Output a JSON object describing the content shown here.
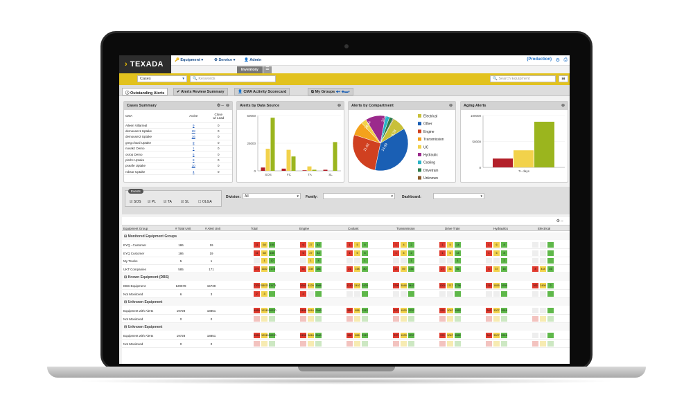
{
  "app": {
    "logo": "TEXADA",
    "production": "(Production)"
  },
  "nav": {
    "equipment": "Equipment",
    "service": "Service",
    "admin": "Admin",
    "inventory": "Inventory"
  },
  "toolbar": {
    "cases": "Cases",
    "keywords": "Keywords",
    "search_equipment": "Search Equipment"
  },
  "tabs": {
    "outstanding": "Outstanding Alerts",
    "review": "Alerts Review Summary",
    "cma": "CMA Activity Scorecard",
    "groups": "My Groups"
  },
  "cases_summary": {
    "title": "Cases Summary",
    "col_cma": "CMA",
    "col_active": "Active",
    "col_close": "Close",
    "col_lead": "w/ Lead",
    "rows": [
      {
        "name": "Aileen Villarreal",
        "active": "9",
        "close": "0"
      },
      {
        "name": "demouser1 Uptake",
        "active": "28",
        "close": "0"
      },
      {
        "name": "demouser2 Uptake",
        "active": "16",
        "close": "0"
      },
      {
        "name": "greg.chard Uptake",
        "active": "9",
        "close": "0"
      },
      {
        "name": "novakz Demo",
        "active": "1",
        "close": "0"
      },
      {
        "name": "osrop Demo",
        "active": "5",
        "close": "0"
      },
      {
        "name": "pitchc Uptake",
        "active": "8",
        "close": "0"
      },
      {
        "name": "pseafe Uptake",
        "active": "10",
        "close": "0"
      },
      {
        "name": "robsor Uptake",
        "active": "4",
        "close": "0"
      }
    ]
  },
  "chart_data": [
    {
      "type": "bar",
      "title": "Alerts by Data Source",
      "categories": [
        "SOS",
        "FC",
        "TA",
        "SL"
      ],
      "ylim": [
        0,
        50000
      ],
      "yticks": [
        "50000",
        "25000",
        "0"
      ],
      "series": [
        {
          "color": "#b3202a",
          "values": [
            3000,
            2000,
            500,
            1000
          ]
        },
        {
          "color": "#f2d24b",
          "values": [
            20000,
            19000,
            4000,
            0
          ]
        },
        {
          "color": "#9bb51e",
          "values": [
            48000,
            13000,
            1000,
            26000
          ]
        }
      ]
    },
    {
      "type": "pie",
      "title": "Alerts by Compartment",
      "slices": [
        {
          "label": "Electrical",
          "color": "#c8c03a",
          "value": 8.28
        },
        {
          "label": "Other",
          "color": "#1a5fb4",
          "value": 37.01
        },
        {
          "label": "Engine",
          "color": "#d04020",
          "value": 26.64
        },
        {
          "label": "Transmission",
          "color": "#f4a21c",
          "value": 8.1
        },
        {
          "label": "UC",
          "color": "#f2d24b",
          "value": 3.2
        },
        {
          "label": "Hydraulic",
          "color": "#9b2a8c",
          "value": 11.63
        },
        {
          "label": "Cooling",
          "color": "#2bb3c6",
          "value": 2.5
        },
        {
          "label": "Drivetrain",
          "color": "#2e7d4a",
          "value": 2.2
        },
        {
          "label": "Unknown",
          "color": "#8a5a2a",
          "value": 0.4
        }
      ],
      "visible_labels": [
        "37.01",
        "26.64",
        "11.63",
        "8.28",
        "14.89"
      ]
    },
    {
      "type": "bar",
      "title": "Aging Alerts",
      "categories": [
        "7+ days"
      ],
      "ylim": [
        0,
        100000
      ],
      "yticks": [
        "100000",
        "50000",
        "0"
      ],
      "series": [
        {
          "color": "#b3202a",
          "values": [
            17000
          ]
        },
        {
          "color": "#f2d24b",
          "values": [
            33000
          ]
        },
        {
          "color": "#9bb51e",
          "values": [
            88000
          ]
        }
      ]
    }
  ],
  "filters": {
    "events": "Events",
    "sos": "SOS",
    "pl": "PL",
    "ta": "TA",
    "sl": "SL",
    "olga": "OLGA",
    "division": "Division:",
    "division_val": "All",
    "family": "Family:",
    "dashboard": "Dashboard:"
  },
  "grid": {
    "headers": [
      "Equipment Group",
      "# Total Unit",
      "# Alert Unit",
      "Total",
      "Engine",
      "Coolant",
      "Transmission",
      "Drive Train",
      "Hydraulics",
      "Electrical"
    ],
    "groups": [
      "Monitored Equipment Groups",
      "Known Equipment (DBS)",
      "Unknown Equipment",
      "Unknown Equipment"
    ],
    "rows": [
      {
        "name": "EYQ - Customer",
        "total": "186",
        "alert": "19",
        "cells": [
          [
            "r",
            "11"
          ],
          [
            "y",
            "68"
          ],
          [
            "g",
            "155"
          ],
          [
            "r",
            "6"
          ],
          [
            "y",
            "27"
          ],
          [
            "g",
            "42"
          ],
          [
            "r",
            "1"
          ],
          [
            "y",
            "5"
          ],
          [
            "g",
            "6"
          ],
          [
            "r",
            "1"
          ],
          [
            "y",
            "4"
          ],
          [
            "g",
            "2"
          ],
          [
            "r",
            "1"
          ],
          [
            "y",
            "5"
          ],
          [
            "g",
            "14"
          ],
          [
            "r",
            "1"
          ],
          [
            "y",
            "6"
          ],
          [
            "g",
            "8"
          ],
          [
            "e",
            ""
          ],
          [
            "e",
            ""
          ],
          [
            "g",
            ""
          ]
        ]
      },
      {
        "name": "EYQ Customer",
        "total": "186",
        "alert": "19",
        "cells": [
          [
            "r",
            "11"
          ],
          [
            "y",
            "68"
          ],
          [
            "g",
            "155"
          ],
          [
            "r",
            "6"
          ],
          [
            "y",
            "27"
          ],
          [
            "g",
            "42"
          ],
          [
            "r",
            "1"
          ],
          [
            "y",
            "5"
          ],
          [
            "g",
            "6"
          ],
          [
            "r",
            "1"
          ],
          [
            "y",
            "4"
          ],
          [
            "g",
            "2"
          ],
          [
            "r",
            "1"
          ],
          [
            "y",
            "5"
          ],
          [
            "g",
            "14"
          ],
          [
            "r",
            "1"
          ],
          [
            "y",
            "6"
          ],
          [
            "g",
            "8"
          ],
          [
            "e",
            ""
          ],
          [
            "e",
            ""
          ],
          [
            "g",
            ""
          ]
        ]
      },
      {
        "name": "My Trucks",
        "total": "5",
        "alert": "1",
        "cells": [
          [
            "e",
            ""
          ],
          [
            "y",
            "1"
          ],
          [
            "g",
            "12"
          ],
          [
            "e",
            ""
          ],
          [
            "y",
            "1"
          ],
          [
            "g",
            "4"
          ],
          [
            "e",
            ""
          ],
          [
            "e",
            ""
          ],
          [
            "g",
            "1"
          ],
          [
            "e",
            ""
          ],
          [
            "e",
            ""
          ],
          [
            "g",
            "1"
          ],
          [
            "e",
            ""
          ],
          [
            "e",
            ""
          ],
          [
            "g",
            "1"
          ],
          [
            "e",
            ""
          ],
          [
            "e",
            ""
          ],
          [
            "g",
            "2"
          ],
          [
            "e",
            ""
          ],
          [
            "e",
            ""
          ],
          [
            "g",
            ""
          ]
        ]
      },
      {
        "name": "UKT Companies",
        "total": "585",
        "alert": "171",
        "cells": [
          [
            "r",
            "275"
          ],
          [
            "y",
            "1182"
          ],
          [
            "g",
            "2178"
          ],
          [
            "r",
            "54"
          ],
          [
            "y",
            "208"
          ],
          [
            "g",
            "384"
          ],
          [
            "r",
            "21"
          ],
          [
            "y",
            "158"
          ],
          [
            "g",
            "80"
          ],
          [
            "r",
            "24"
          ],
          [
            "y",
            "59"
          ],
          [
            "g",
            "156"
          ],
          [
            "r",
            "27"
          ],
          [
            "y",
            "34"
          ],
          [
            "g",
            "56"
          ],
          [
            "r",
            "4"
          ],
          [
            "y",
            "37"
          ],
          [
            "g",
            "16"
          ],
          [
            "r",
            "8"
          ],
          [
            "y",
            "444"
          ],
          [
            "g",
            "16"
          ]
        ]
      },
      {
        "name": "DBS Equipment",
        "total": "129578",
        "alert": "15739",
        "cells": [
          [
            "r",
            "17032"
          ],
          [
            "y",
            "53971"
          ],
          [
            "g",
            "91173"
          ],
          [
            "r",
            "2640"
          ],
          [
            "y",
            "8129"
          ],
          [
            "g",
            "3986"
          ],
          [
            "r",
            "1210"
          ],
          [
            "y",
            "2402"
          ],
          [
            "g",
            "2425"
          ],
          [
            "r",
            "1290"
          ],
          [
            "y",
            "3048"
          ],
          [
            "g",
            "3442"
          ],
          [
            "r",
            "1204"
          ],
          [
            "y",
            "1717"
          ],
          [
            "g",
            "1736"
          ],
          [
            "r",
            "1114"
          ],
          [
            "y",
            "1855"
          ],
          [
            "g",
            "1936"
          ],
          [
            "r",
            "392"
          ],
          [
            "y",
            "2490"
          ],
          [
            "g",
            "2"
          ]
        ]
      },
      {
        "name": "Not Monitored",
        "total": "6",
        "alert": "3",
        "cells": [
          [
            "r",
            "2"
          ],
          [
            "y",
            "3"
          ],
          [
            "g",
            ""
          ],
          [
            "r",
            "2"
          ],
          [
            "e",
            ""
          ],
          [
            "g",
            ""
          ],
          [
            "e",
            ""
          ],
          [
            "e",
            ""
          ],
          [
            "g",
            ""
          ],
          [
            "e",
            ""
          ],
          [
            "e",
            ""
          ],
          [
            "g",
            ""
          ],
          [
            "e",
            ""
          ],
          [
            "e",
            ""
          ],
          [
            "g",
            ""
          ],
          [
            "e",
            ""
          ],
          [
            "e",
            ""
          ],
          [
            "g",
            ""
          ],
          [
            "e",
            ""
          ],
          [
            "e",
            ""
          ],
          [
            "g",
            ""
          ]
        ]
      },
      {
        "name": "Equipment with Alerts",
        "total": "19728",
        "alert": "18851",
        "cells": [
          [
            "r",
            "4950"
          ],
          [
            "y",
            "12245"
          ],
          [
            "g",
            "20220"
          ],
          [
            "r",
            "2458"
          ],
          [
            "y",
            "5816"
          ],
          [
            "g",
            "2940"
          ],
          [
            "r",
            "552"
          ],
          [
            "y",
            "858"
          ],
          [
            "g",
            "2112"
          ],
          [
            "r",
            "370"
          ],
          [
            "y",
            "1033"
          ],
          [
            "g",
            "1757"
          ],
          [
            "r",
            "574"
          ],
          [
            "y",
            "3067"
          ],
          [
            "g",
            "1552"
          ],
          [
            "r",
            "342"
          ],
          [
            "y",
            "3207"
          ],
          [
            "g",
            "2916"
          ],
          [
            "e",
            ""
          ],
          [
            "e",
            ""
          ],
          [
            "g",
            ""
          ]
        ]
      },
      {
        "name": "Not Monitored",
        "total": "0",
        "alert": "0",
        "cells": [
          [
            "lr",
            ""
          ],
          [
            "ly",
            ""
          ],
          [
            "lg",
            ""
          ],
          [
            "lr",
            ""
          ],
          [
            "ly",
            ""
          ],
          [
            "lg",
            ""
          ],
          [
            "lr",
            ""
          ],
          [
            "ly",
            ""
          ],
          [
            "lg",
            ""
          ],
          [
            "lr",
            ""
          ],
          [
            "ly",
            ""
          ],
          [
            "lg",
            ""
          ],
          [
            "lr",
            ""
          ],
          [
            "ly",
            ""
          ],
          [
            "lg",
            ""
          ],
          [
            "lr",
            ""
          ],
          [
            "ly",
            ""
          ],
          [
            "lg",
            ""
          ],
          [
            "lr",
            ""
          ],
          [
            "ly",
            ""
          ],
          [
            "lg",
            ""
          ]
        ]
      },
      {
        "name": "Equipment with Alerts",
        "total": "19728",
        "alert": "18851",
        "cells": [
          [
            "r",
            "4950"
          ],
          [
            "y",
            "12245"
          ],
          [
            "g",
            "20220"
          ],
          [
            "r",
            "2458"
          ],
          [
            "y",
            "5816"
          ],
          [
            "g",
            "2940"
          ],
          [
            "r",
            "552"
          ],
          [
            "y",
            "858"
          ],
          [
            "g",
            "2112"
          ],
          [
            "r",
            "370"
          ],
          [
            "y",
            "1033"
          ],
          [
            "g",
            "1757"
          ],
          [
            "r",
            "574"
          ],
          [
            "y",
            "3067"
          ],
          [
            "g",
            "1552"
          ],
          [
            "r",
            "342"
          ],
          [
            "y",
            "3207"
          ],
          [
            "g",
            "2916"
          ],
          [
            "e",
            ""
          ],
          [
            "e",
            ""
          ],
          [
            "g",
            ""
          ]
        ]
      },
      {
        "name": "Not Monitored",
        "total": "0",
        "alert": "0",
        "cells": [
          [
            "lr",
            ""
          ],
          [
            "ly",
            ""
          ],
          [
            "lg",
            ""
          ],
          [
            "lr",
            ""
          ],
          [
            "ly",
            ""
          ],
          [
            "lg",
            ""
          ],
          [
            "lr",
            ""
          ],
          [
            "ly",
            ""
          ],
          [
            "lg",
            ""
          ],
          [
            "lr",
            ""
          ],
          [
            "ly",
            ""
          ],
          [
            "lg",
            ""
          ],
          [
            "lr",
            ""
          ],
          [
            "ly",
            ""
          ],
          [
            "lg",
            ""
          ],
          [
            "lr",
            ""
          ],
          [
            "ly",
            ""
          ],
          [
            "lg",
            ""
          ],
          [
            "lr",
            ""
          ],
          [
            "ly",
            ""
          ],
          [
            "lg",
            ""
          ]
        ]
      }
    ]
  }
}
